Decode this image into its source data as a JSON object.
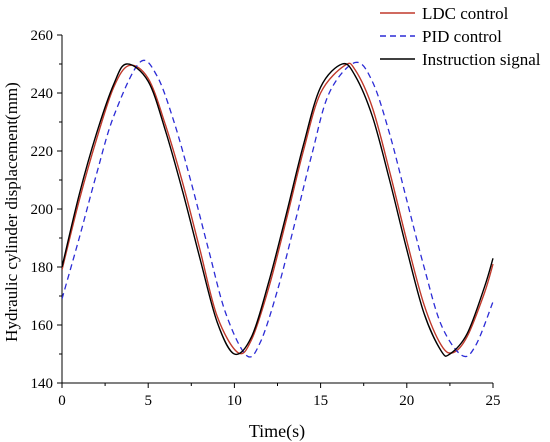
{
  "chart_data": {
    "type": "line",
    "xlabel": "Time(s)",
    "ylabel": "Hydraulic cylinder displacement(mm)",
    "xlim": [
      0,
      25
    ],
    "ylim": [
      140,
      260
    ],
    "xticks": [
      0,
      5,
      10,
      15,
      20,
      25
    ],
    "yticks": [
      140,
      160,
      180,
      200,
      220,
      240,
      260
    ],
    "grid": false,
    "legend_position": "top-right",
    "series": [
      {
        "name": "LDC control",
        "color": "#c0392b",
        "style": "solid",
        "x": [
          0,
          1,
          2,
          3,
          3.9,
          5,
          6,
          7,
          8,
          9,
          10.2,
          11,
          12,
          13,
          14,
          15,
          16.4,
          17,
          18,
          19,
          20,
          21,
          22,
          22.7,
          23.5,
          24.5,
          25
        ],
        "y": [
          179,
          203,
          224,
          242,
          249.5,
          245,
          229,
          209,
          186,
          163,
          150.5,
          155,
          173,
          196,
          220,
          240,
          249.5,
          248,
          235,
          213,
          189,
          167,
          153,
          150.5,
          156,
          171,
          181
        ]
      },
      {
        "name": "PID control",
        "color": "#2c2cd6",
        "style": "dashed",
        "x": [
          0,
          1,
          2,
          3,
          4.5,
          5.5,
          6.5,
          7.5,
          8.5,
          9.5,
          10.7,
          11.5,
          12.5,
          13.5,
          14.5,
          15.5,
          17.0,
          18,
          19,
          20,
          21,
          22,
          23.2,
          24,
          25
        ],
        "y": [
          169,
          190,
          212,
          232,
          250.5,
          246,
          230,
          209,
          186,
          164,
          149.5,
          154,
          172,
          195,
          219,
          240,
          250.5,
          244,
          226,
          203,
          180,
          160,
          149.5,
          153,
          168
        ]
      },
      {
        "name": "Instruction signal",
        "color": "#000000",
        "style": "solid",
        "x": [
          0,
          1,
          2,
          3,
          3.75,
          5,
          6,
          7,
          8,
          9,
          10.0,
          11,
          12,
          13,
          14,
          15,
          16.25,
          17,
          18,
          19,
          20,
          21,
          22,
          22.5,
          23.5,
          24.5,
          25
        ],
        "y": [
          180,
          205,
          226,
          243,
          250,
          244,
          227,
          206,
          183,
          161,
          150,
          156,
          175,
          198,
          222,
          242,
          250,
          246,
          232,
          210,
          186,
          164,
          151,
          150,
          157,
          173,
          183
        ]
      }
    ]
  }
}
